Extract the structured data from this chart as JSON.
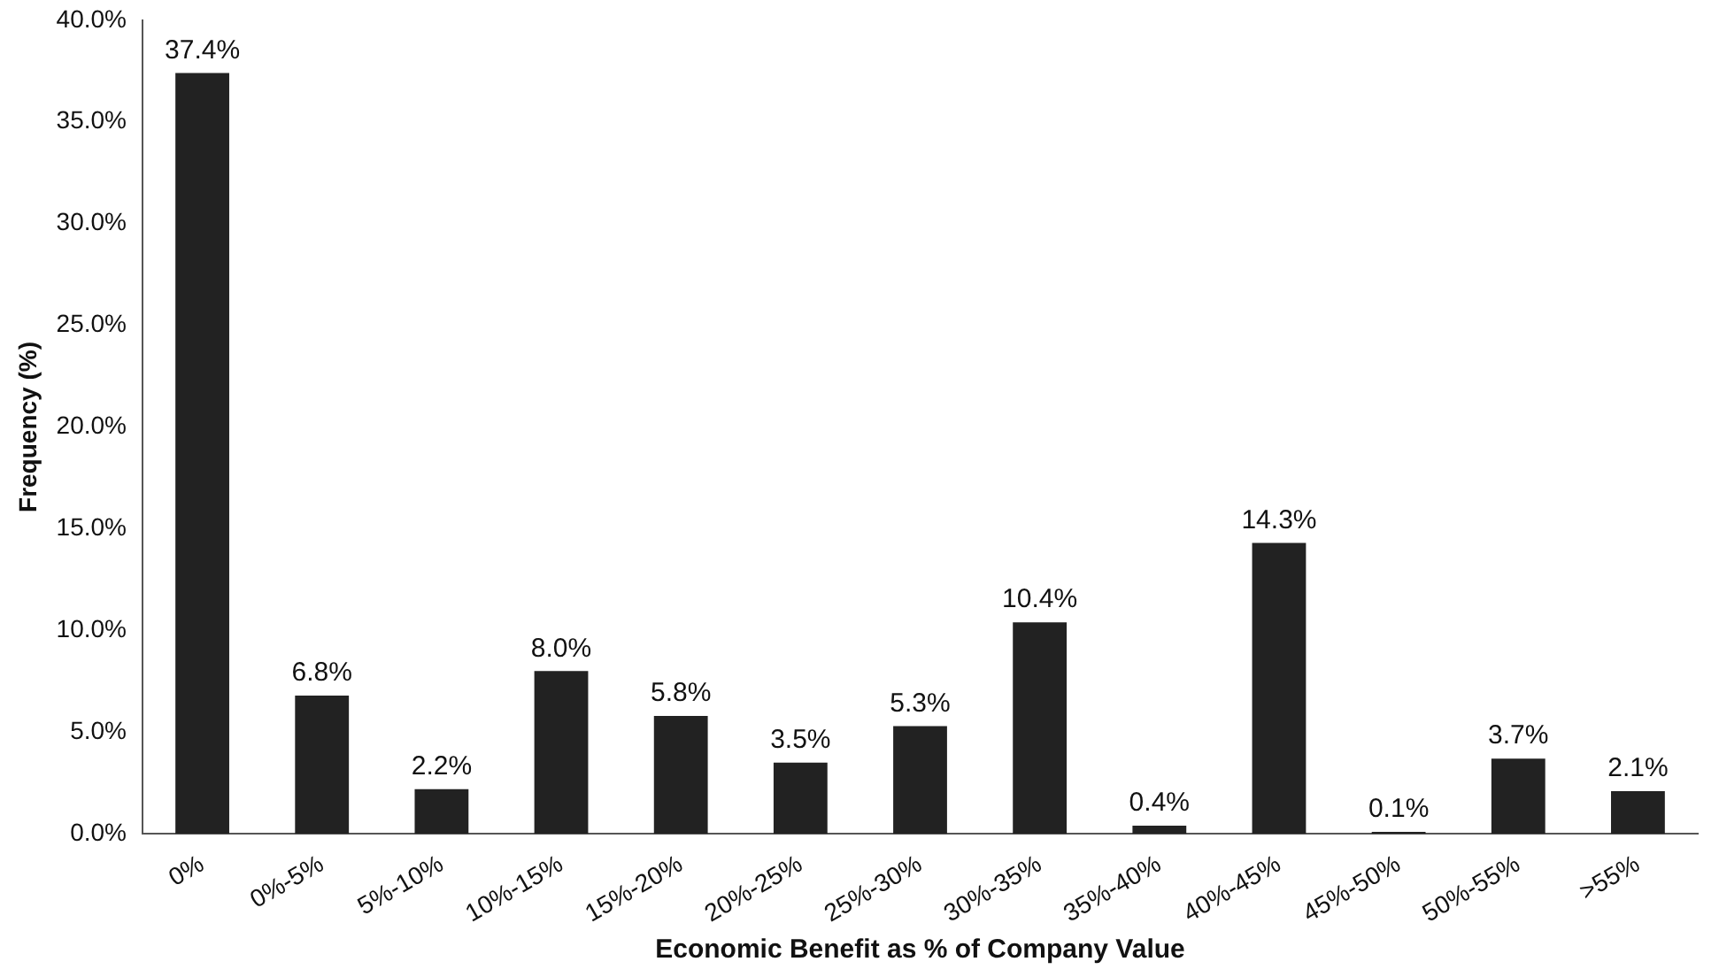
{
  "chart_data": {
    "type": "bar",
    "xlabel": "Economic Benefit as % of Company Value",
    "ylabel": "Frequency (%)",
    "categories": [
      "0%",
      "0%-5%",
      "5%-10%",
      "10%-15%",
      "15%-20%",
      "20%-25%",
      "25%-30%",
      "30%-35%",
      "35%-40%",
      "40%-45%",
      "45%-50%",
      "50%-55%",
      ">55%"
    ],
    "values": [
      37.4,
      6.8,
      2.2,
      8.0,
      5.8,
      3.5,
      5.3,
      10.4,
      0.4,
      14.3,
      0.1,
      3.7,
      2.1
    ],
    "value_labels": [
      "37.4%",
      "6.8%",
      "2.2%",
      "8.0%",
      "5.8%",
      "3.5%",
      "5.3%",
      "10.4%",
      "0.4%",
      "14.3%",
      "0.1%",
      "3.7%",
      "2.1%"
    ],
    "color": "#222222",
    "ylim": [
      0,
      40
    ],
    "yticks": [
      {
        "value": 0,
        "label": "0.0%"
      },
      {
        "value": 5,
        "label": "5.0%"
      },
      {
        "value": 10,
        "label": "10.0%"
      },
      {
        "value": 15,
        "label": "15.0%"
      },
      {
        "value": 20,
        "label": "20.0%"
      },
      {
        "value": 25,
        "label": "25.0%"
      },
      {
        "value": 30,
        "label": "30.0%"
      },
      {
        "value": 35,
        "label": "35.0%"
      },
      {
        "value": 40,
        "label": "40.0%"
      }
    ],
    "grid": false,
    "legend": false
  }
}
